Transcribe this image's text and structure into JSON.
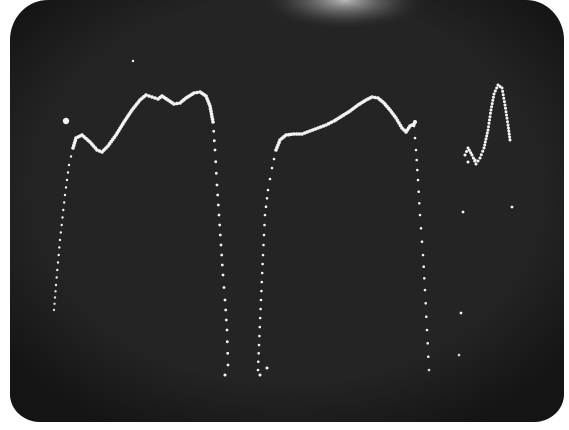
{
  "scene": {
    "subject": "oscilloscope-trace-photograph",
    "background_color": "#242424",
    "frame_color": "#ffffff",
    "trace_color": "#f4f4f4",
    "glare_color": "#d8d8d8"
  }
}
